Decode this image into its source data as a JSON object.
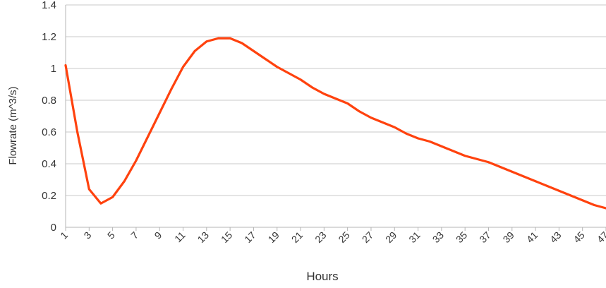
{
  "chart_data": {
    "type": "line",
    "xlabel": "Hours",
    "ylabel": "Flowrate (m^3/s)",
    "ylim": [
      0,
      1.4
    ],
    "y_ticks": [
      0,
      0.2,
      0.4,
      0.6,
      0.8,
      1,
      1.2,
      1.4
    ],
    "y_tick_labels": [
      "0",
      "0.2",
      "0.4",
      "0.6",
      "0.8",
      "1",
      "1.2",
      "1.4"
    ],
    "x_tick_labels": [
      "1",
      "3",
      "5",
      "7",
      "9",
      "11",
      "13",
      "15",
      "17",
      "19",
      "21",
      "23",
      "25",
      "27",
      "29",
      "31",
      "33",
      "35",
      "37",
      "39",
      "41",
      "43",
      "45",
      "47"
    ],
    "grid": "horizontal",
    "legend": "none",
    "series": [
      {
        "color": "#ff420e",
        "x": [
          1,
          2,
          3,
          4,
          5,
          6,
          7,
          8,
          9,
          10,
          11,
          12,
          13,
          14,
          15,
          16,
          17,
          18,
          19,
          20,
          21,
          22,
          23,
          24,
          25,
          26,
          27,
          28,
          29,
          30,
          31,
          32,
          33,
          34,
          35,
          36,
          37,
          38,
          39,
          40,
          41,
          42,
          43,
          44,
          45,
          46,
          47
        ],
        "values": [
          1.02,
          0.6,
          0.24,
          0.15,
          0.19,
          0.29,
          0.42,
          0.57,
          0.72,
          0.87,
          1.01,
          1.11,
          1.17,
          1.19,
          1.19,
          1.16,
          1.11,
          1.06,
          1.01,
          0.97,
          0.93,
          0.88,
          0.84,
          0.81,
          0.78,
          0.73,
          0.69,
          0.66,
          0.63,
          0.59,
          0.56,
          0.54,
          0.51,
          0.48,
          0.45,
          0.43,
          0.41,
          0.38,
          0.35,
          0.32,
          0.29,
          0.26,
          0.23,
          0.2,
          0.17,
          0.14,
          0.12
        ]
      }
    ]
  }
}
